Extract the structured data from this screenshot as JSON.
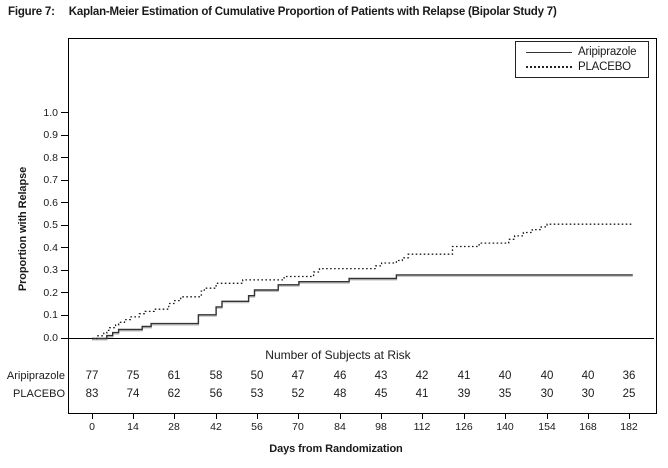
{
  "figure": {
    "label": "Figure 7:",
    "title": "Kaplan-Meier Estimation of Cumulative Proportion of Patients with Relapse (Bipolar Study 7)"
  },
  "chart_data": {
    "type": "line",
    "subtype": "kaplan_meier_step",
    "title": "Kaplan-Meier Estimation of Cumulative Proportion of Patients with Relapse (Bipolar Study 7)",
    "xlabel": "Days from Randomization",
    "ylabel": "Proportion with Relapse",
    "xlim": [
      0,
      182
    ],
    "ylim": [
      0,
      1.0
    ],
    "xticks": [
      0,
      14,
      28,
      42,
      56,
      70,
      84,
      98,
      112,
      126,
      140,
      154,
      168,
      182
    ],
    "yticks": [
      0.0,
      0.1,
      0.2,
      0.3,
      0.4,
      0.5,
      0.6,
      0.7,
      0.8,
      0.9,
      1.0
    ],
    "grid": false,
    "legend_position": "top-right",
    "series": [
      {
        "name": "Aripiprazole",
        "line_style": "solid",
        "color": "#333333",
        "steps": [
          [
            0,
            0
          ],
          [
            5,
            0.013
          ],
          [
            7,
            0.026
          ],
          [
            9,
            0.04
          ],
          [
            17,
            0.053
          ],
          [
            20,
            0.066
          ],
          [
            36,
            0.105
          ],
          [
            42,
            0.14
          ],
          [
            44,
            0.165
          ],
          [
            53,
            0.19
          ],
          [
            55,
            0.215
          ],
          [
            63,
            0.238
          ],
          [
            70,
            0.252
          ],
          [
            87,
            0.266
          ],
          [
            103,
            0.282
          ],
          [
            183,
            0.282
          ]
        ]
      },
      {
        "name": "PLACEBO",
        "line_style": "dotted",
        "color": "#1a1a1a",
        "steps": [
          [
            0,
            0
          ],
          [
            2,
            0.012
          ],
          [
            4,
            0.024
          ],
          [
            5,
            0.036
          ],
          [
            6,
            0.048
          ],
          [
            8,
            0.06
          ],
          [
            9,
            0.072
          ],
          [
            11,
            0.084
          ],
          [
            13,
            0.096
          ],
          [
            16,
            0.11
          ],
          [
            18,
            0.12
          ],
          [
            21,
            0.13
          ],
          [
            26,
            0.155
          ],
          [
            28,
            0.168
          ],
          [
            30,
            0.185
          ],
          [
            37,
            0.21
          ],
          [
            38,
            0.223
          ],
          [
            42,
            0.245
          ],
          [
            51,
            0.26
          ],
          [
            65,
            0.275
          ],
          [
            75,
            0.295
          ],
          [
            77,
            0.31
          ],
          [
            96,
            0.322
          ],
          [
            98,
            0.335
          ],
          [
            103,
            0.346
          ],
          [
            105,
            0.358
          ],
          [
            107,
            0.374
          ],
          [
            122,
            0.408
          ],
          [
            131,
            0.423
          ],
          [
            141,
            0.44
          ],
          [
            143,
            0.455
          ],
          [
            146,
            0.47
          ],
          [
            149,
            0.483
          ],
          [
            152,
            0.495
          ],
          [
            154,
            0.507
          ],
          [
            183,
            0.507
          ]
        ]
      }
    ],
    "risk_table": {
      "title": "Number of Subjects at Risk",
      "days": [
        0,
        14,
        28,
        42,
        56,
        70,
        84,
        98,
        112,
        126,
        140,
        154,
        168,
        182
      ],
      "rows": [
        {
          "name": "Aripiprazole",
          "counts": [
            77,
            75,
            61,
            58,
            50,
            47,
            46,
            43,
            42,
            41,
            40,
            40,
            40,
            36
          ]
        },
        {
          "name": "PLACEBO",
          "counts": [
            83,
            74,
            62,
            56,
            53,
            52,
            48,
            45,
            41,
            39,
            35,
            30,
            30,
            25
          ]
        }
      ]
    }
  }
}
